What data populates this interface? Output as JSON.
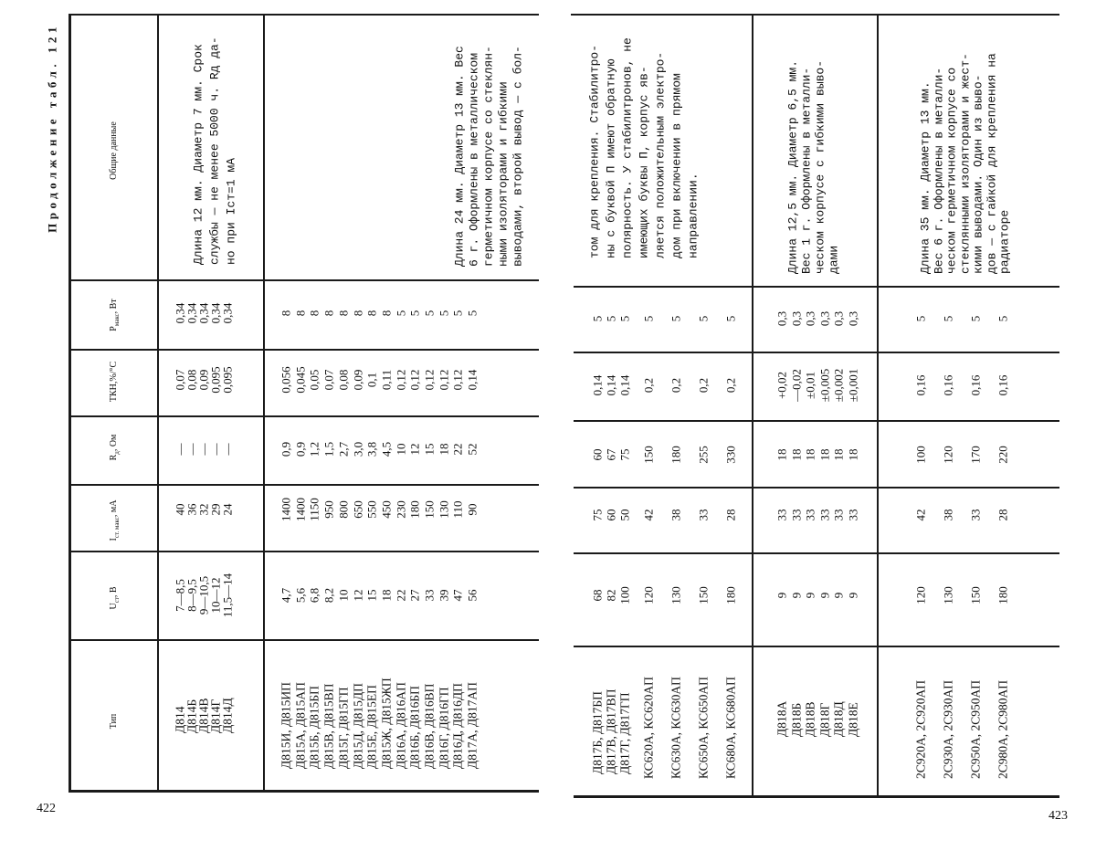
{
  "header": {
    "title": "Продолжение табл. 121",
    "page_left": "422",
    "page_right": "423"
  },
  "columns": [
    {
      "main": "Тип",
      "sub": "",
      "rest": ""
    },
    {
      "main": "U",
      "sub": "ст",
      "rest": ", В"
    },
    {
      "main": "I",
      "sub": "ст. макс",
      "rest": ", мА"
    },
    {
      "main": "R",
      "sub": "д",
      "rest": ", Ом"
    },
    {
      "main": "ТКН,",
      "sub": "",
      "rest": "%/°C"
    },
    {
      "main": "P",
      "sub": "макс",
      "rest": ", Вт"
    },
    {
      "main": "Общие данные",
      "sub": "",
      "rest": ""
    }
  ],
  "left_page": {
    "rows": [
      {
        "type": [
          "Д814",
          "Д814Б",
          "Д814В",
          "Д814Г",
          "Д814Д"
        ],
        "u": [
          "7—8,5",
          "8—9,5",
          "9—10,5",
          "10—12",
          "11,5—14"
        ],
        "i": [
          "40",
          "36",
          "32",
          "29",
          "24"
        ],
        "r": [
          "—",
          "—",
          "—",
          "—",
          "—"
        ],
        "tkn": [
          "0,07",
          "0,08",
          "0,09",
          "0,095",
          "0,095"
        ],
        "p": [
          "0,34",
          "0,34",
          "0,34",
          "0,34",
          "0,34"
        ],
        "notes": [
          "Длина 12 мм. Диаметр 7 мм. Срок",
          "службы — не менее 5000 ч. Rд да-",
          "но при Iст=1 мА"
        ]
      },
      {
        "type": [
          "Д815И, Д815ИП",
          "Д815А, Д815АП",
          "Д815Б, Д815БП",
          "Д815В, Д815ВП",
          "Д815Г, Д815ГП",
          "Д815Д, Д815ДП",
          "Д815Е, Д815ЕП",
          "Д815Ж, Д815ЖП",
          "Д816А, Д816АП",
          "Д816Б, Д816БП",
          "Д816В, Д816ВП",
          "Д816Г, Д816ГП",
          "Д816Д, Д816ДП",
          "Д817А, Д817АП"
        ],
        "u": [
          "4,7",
          "5,6",
          "6,8",
          "8,2",
          "10",
          "12",
          "15",
          "18",
          "22",
          "27",
          "33",
          "39",
          "47",
          "56"
        ],
        "i": [
          "1400",
          "1400",
          "1150",
          "950",
          "800",
          "650",
          "550",
          "450",
          "230",
          "180",
          "150",
          "130",
          "110",
          "90"
        ],
        "r": [
          "0,9",
          "0,9",
          "1,2",
          "1,5",
          "2,7",
          "3,0",
          "3,8",
          "4,5",
          "10",
          "12",
          "15",
          "18",
          "22",
          "52"
        ],
        "tkn": [
          "0,056",
          "0,045",
          "0,05",
          "0,07",
          "0,08",
          "0,09",
          "0,1",
          "0,11",
          "0,12",
          "0,12",
          "0,12",
          "0,12",
          "0,12",
          "0,14"
        ],
        "p": [
          "8",
          "8",
          "8",
          "8",
          "8",
          "8",
          "8",
          "8",
          "5",
          "5",
          "5",
          "5",
          "5",
          "5"
        ],
        "notes": [
          "Длина 24 мм. Диаметр 13 мм. Вес",
          "6 г. Оформлены в металлическом",
          "герметичном корпусе со стеклян-",
          "ными изоляторами и гибкими",
          "выводами, второй вывод — с бол-"
        ]
      }
    ]
  },
  "right_page": {
    "notes_continued": [
      "том для крепления. Стабилитро-",
      "ны с буквой П имеют обратную",
      "полярность. У стабилитронов, не",
      "имеющих буквы П, корпус яв-",
      "ляется положительным электро-",
      "дом при включении в прямом",
      "направлении."
    ],
    "rows": [
      {
        "type": [
          "Д817Б, Д817БП",
          "Д817В, Д817ВП",
          "Д817Г, Д817ГП"
        ],
        "u": [
          "68",
          "82",
          "100"
        ],
        "i": [
          "75",
          "60",
          "50"
        ],
        "r": [
          "60",
          "67",
          "75"
        ],
        "tkn": [
          "0,14",
          "0,14",
          "0,14"
        ],
        "p": [
          "5",
          "5",
          "5"
        ]
      },
      {
        "type": [
          "КС620А, КС620АП"
        ],
        "u": [
          "120"
        ],
        "i": [
          "42"
        ],
        "r": [
          "150"
        ],
        "tkn": [
          "0,2"
        ],
        "p": [
          "5"
        ]
      },
      {
        "type": [
          "КС630А, КС630АП"
        ],
        "u": [
          "130"
        ],
        "i": [
          "38"
        ],
        "r": [
          "180"
        ],
        "tkn": [
          "0,2"
        ],
        "p": [
          "5"
        ]
      },
      {
        "type": [
          "КС650А, КС650АП"
        ],
        "u": [
          "150"
        ],
        "i": [
          "33"
        ],
        "r": [
          "255"
        ],
        "tkn": [
          "0,2"
        ],
        "p": [
          "5"
        ]
      },
      {
        "type": [
          "КС680А, КС680АП"
        ],
        "u": [
          "180"
        ],
        "i": [
          "28"
        ],
        "r": [
          "330"
        ],
        "tkn": [
          "0,2"
        ],
        "p": [
          "5"
        ]
      },
      {
        "type": [
          "Д818А",
          "Д818Б",
          "Д818В",
          "Д818Г",
          "Д818Д",
          "Д818Е"
        ],
        "u": [
          "9",
          "9",
          "9",
          "9",
          "9",
          "9"
        ],
        "i": [
          "33",
          "33",
          "33",
          "33",
          "33",
          "33"
        ],
        "r": [
          "18",
          "18",
          "18",
          "18",
          "18",
          "18"
        ],
        "tkn": [
          "+0,02",
          "—0,02",
          "±0,01",
          "±0,005",
          "±0,002",
          "±0,001"
        ],
        "p": [
          "0,3",
          "0,3",
          "0,3",
          "0,3",
          "0,3",
          "0,3"
        ],
        "notes": [
          "Длина 12,5 мм. Диаметр 6,5 мм.",
          "Вес 1 г. Оформлены в металли-",
          "ческом корпусе с гибкими выво-",
          "дами"
        ]
      },
      {
        "type": [
          "2С920А, 2С920АП"
        ],
        "u": [
          "120"
        ],
        "i": [
          "42"
        ],
        "r": [
          "100"
        ],
        "tkn": [
          "0,16"
        ],
        "p": [
          "5"
        ],
        "notes": [
          "Длина 35 мм. Диаметр 13 мм.",
          "Вес 6 г. Оформлены в металли-",
          "ческом герметичном корпусе со",
          "стеклянными изоляторами и жест-",
          "кими выводами. Один из выво-",
          "дов — с гайкой для крепления на",
          "радиаторе"
        ]
      },
      {
        "type": [
          "2С930А, 2С930АП"
        ],
        "u": [
          "130"
        ],
        "i": [
          "38"
        ],
        "r": [
          "120"
        ],
        "tkn": [
          "0,16"
        ],
        "p": [
          "5"
        ]
      },
      {
        "type": [
          "2С950А, 2С950АП"
        ],
        "u": [
          "150"
        ],
        "i": [
          "33"
        ],
        "r": [
          "170"
        ],
        "tkn": [
          "0,16"
        ],
        "p": [
          "5"
        ]
      },
      {
        "type": [
          "2С980А, 2С980АП"
        ],
        "u": [
          "180"
        ],
        "i": [
          "28"
        ],
        "r": [
          "220"
        ],
        "tkn": [
          "0,16"
        ],
        "p": [
          "5"
        ]
      }
    ]
  }
}
